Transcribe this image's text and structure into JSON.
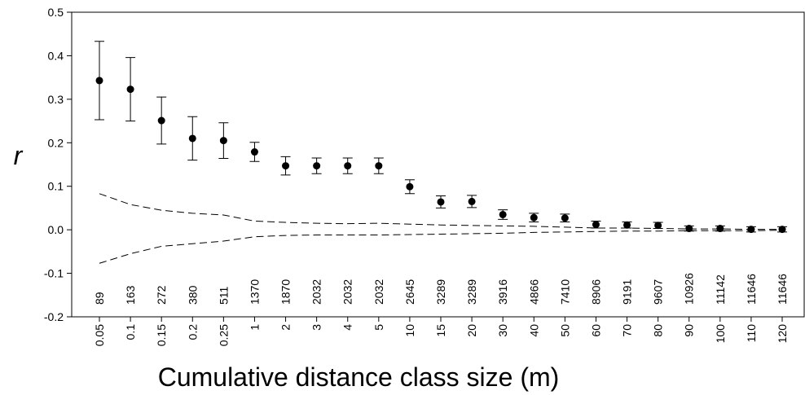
{
  "chart_data": {
    "type": "scatter",
    "ylabel": "r",
    "xlabel": "Cumulative distance class size (m)",
    "categories": [
      "0.05",
      "0.1",
      "0.15",
      "0.2",
      "0.25",
      "1",
      "2",
      "3",
      "4",
      "5",
      "10",
      "15",
      "20",
      "30",
      "40",
      "50",
      "60",
      "70",
      "80",
      "90",
      "100",
      "110",
      "120"
    ],
    "values": [
      0.343,
      0.323,
      0.251,
      0.21,
      0.205,
      0.179,
      0.147,
      0.147,
      0.147,
      0.147,
      0.099,
      0.064,
      0.065,
      0.035,
      0.028,
      0.027,
      0.012,
      0.011,
      0.01,
      0.003,
      0.003,
      0.001,
      0.001
    ],
    "errors": [
      0.09,
      0.073,
      0.054,
      0.05,
      0.041,
      0.022,
      0.021,
      0.018,
      0.018,
      0.018,
      0.016,
      0.014,
      0.014,
      0.011,
      0.01,
      0.009,
      0.008,
      0.007,
      0.007,
      0.006,
      0.006,
      0.006,
      0.006
    ],
    "upper": [
      0.083,
      0.058,
      0.045,
      0.038,
      0.034,
      0.02,
      0.017,
      0.015,
      0.014,
      0.015,
      0.013,
      0.011,
      0.01,
      0.009,
      0.008,
      0.006,
      0.004,
      0.004,
      0.003,
      0.002,
      0.002,
      0.001,
      0.001
    ],
    "lower": [
      -0.077,
      -0.055,
      -0.038,
      -0.032,
      -0.026,
      -0.016,
      -0.013,
      -0.012,
      -0.012,
      -0.012,
      -0.011,
      -0.01,
      -0.009,
      -0.008,
      -0.006,
      -0.005,
      -0.004,
      -0.003,
      -0.003,
      -0.002,
      -0.002,
      -0.002,
      -0.001
    ],
    "sample_sizes": [
      89,
      163,
      272,
      380,
      511,
      1370,
      1870,
      2032,
      2032,
      2032,
      2645,
      3289,
      3289,
      3916,
      4866,
      7410,
      8906,
      9191,
      9607,
      10926,
      11142,
      11646,
      11646
    ],
    "color": "#000000",
    "ylim": [
      -0.2,
      0.5
    ],
    "yticks": [
      -0.2,
      -0.1,
      {
        "value": 0,
        "label": "0.0"
      },
      0.1,
      0.2,
      0.3,
      0.4,
      0.5
    ]
  }
}
